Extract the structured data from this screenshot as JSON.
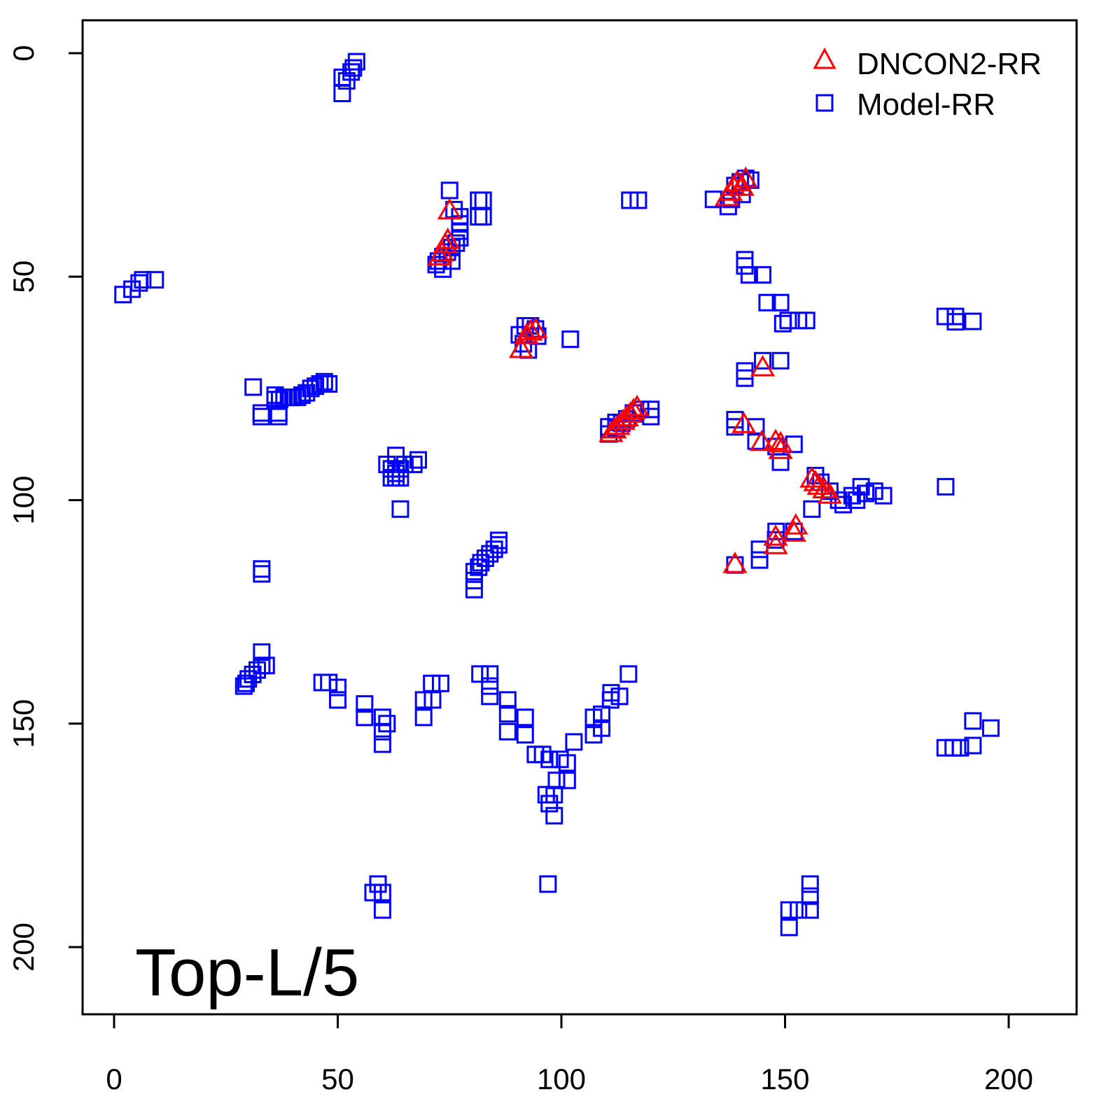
{
  "chart_data": {
    "type": "scatter",
    "title": "",
    "annotation": "Top-L/5",
    "xlabel": "",
    "ylabel": "",
    "xlim": [
      -7,
      215
    ],
    "ylim": [
      215,
      -7
    ],
    "y_inverted": true,
    "x_ticks": [
      "0",
      "50",
      "100",
      "150",
      "200"
    ],
    "y_ticks": [
      "0",
      "50",
      "100",
      "150",
      "200"
    ],
    "grid": false,
    "legend": {
      "placement": "top-right",
      "entries": [
        {
          "label": "DNCON2-RR",
          "marker": "triangle",
          "color": "#ff0000"
        },
        {
          "label": "Model-RR",
          "marker": "square",
          "color": "#0000ff"
        }
      ]
    },
    "series": [
      {
        "name": "Model-RR",
        "marker": "square",
        "color": "#0000ff",
        "points": [
          [
            51,
            9
          ],
          [
            51,
            5.4
          ],
          [
            52,
            6.2
          ],
          [
            53,
            4.2
          ],
          [
            53.5,
            3.3
          ],
          [
            54.2,
            1.9
          ],
          [
            2,
            54
          ],
          [
            4,
            52.8
          ],
          [
            5.6,
            51.4
          ],
          [
            6.4,
            50.7
          ],
          [
            9.2,
            50.7
          ],
          [
            75,
            30.7
          ],
          [
            81.5,
            32.9
          ],
          [
            81.5,
            36.6
          ],
          [
            82.5,
            32.9
          ],
          [
            82.5,
            36.6
          ],
          [
            77.3,
            36.6
          ],
          [
            77.3,
            38.2
          ],
          [
            77.3,
            39.8
          ],
          [
            77.3,
            41.3
          ],
          [
            76.5,
            42.5
          ],
          [
            75.5,
            43.5
          ],
          [
            74.5,
            44.5
          ],
          [
            73.5,
            45.5
          ],
          [
            72.5,
            46.5
          ],
          [
            72,
            47.3
          ],
          [
            73.5,
            48.3
          ],
          [
            75.5,
            46.5
          ],
          [
            76,
            35
          ],
          [
            90.6,
            63
          ],
          [
            91.9,
            61
          ],
          [
            93.1,
            61
          ],
          [
            94.2,
            61.7
          ],
          [
            94.7,
            63.3
          ],
          [
            92.6,
            66.4
          ],
          [
            91.5,
            65
          ],
          [
            102,
            64
          ],
          [
            31.1,
            74.7
          ],
          [
            36,
            76.5
          ],
          [
            37,
            77.5
          ],
          [
            38,
            77
          ],
          [
            39,
            77
          ],
          [
            40,
            77
          ],
          [
            41,
            77
          ],
          [
            42,
            76.5
          ],
          [
            43,
            76
          ],
          [
            44,
            75
          ],
          [
            45,
            74.5
          ],
          [
            46,
            74
          ],
          [
            47,
            73.5
          ],
          [
            48,
            74
          ],
          [
            32.9,
            80.5
          ],
          [
            32.9,
            81.3
          ],
          [
            36.8,
            80.5
          ],
          [
            36.8,
            81.3
          ],
          [
            36,
            77.5
          ],
          [
            61,
            92
          ],
          [
            62,
            93
          ],
          [
            63,
            94
          ],
          [
            64,
            93
          ],
          [
            65,
            92
          ],
          [
            67,
            92
          ],
          [
            68,
            91
          ],
          [
            62,
            95
          ],
          [
            63,
            95
          ],
          [
            64,
            95
          ],
          [
            63,
            90
          ],
          [
            64,
            102
          ],
          [
            80.5,
            120
          ],
          [
            80.5,
            118
          ],
          [
            80.5,
            116
          ],
          [
            81.5,
            115
          ],
          [
            82,
            114
          ],
          [
            83,
            113
          ],
          [
            84,
            112
          ],
          [
            85,
            111
          ],
          [
            86,
            110
          ],
          [
            86,
            109
          ],
          [
            33,
            115.4
          ],
          [
            33,
            116.5
          ],
          [
            29,
            141.6
          ],
          [
            29.5,
            141
          ],
          [
            30,
            140
          ],
          [
            31,
            139
          ],
          [
            32,
            138
          ],
          [
            33,
            137
          ],
          [
            34,
            137
          ],
          [
            33,
            134
          ],
          [
            46.5,
            140.8
          ],
          [
            48,
            140.8
          ],
          [
            50,
            141.9
          ],
          [
            50,
            144.7
          ],
          [
            56,
            145.6
          ],
          [
            56,
            148.6
          ],
          [
            60,
            148.6
          ],
          [
            60,
            151.8
          ],
          [
            60,
            154.6
          ],
          [
            61,
            150
          ],
          [
            69.2,
            144.7
          ],
          [
            71.2,
            144.7
          ],
          [
            69.2,
            148.6
          ],
          [
            71,
            141
          ],
          [
            73,
            141
          ],
          [
            81.8,
            138.9
          ],
          [
            84,
            138.9
          ],
          [
            84,
            141.6
          ],
          [
            84,
            143.9
          ],
          [
            88,
            144.7
          ],
          [
            88,
            147.8
          ],
          [
            88,
            151.8
          ],
          [
            91.9,
            148.6
          ],
          [
            91.9,
            152.5
          ],
          [
            94.2,
            156.9
          ],
          [
            95.8,
            156.9
          ],
          [
            97.3,
            158
          ],
          [
            99.7,
            158
          ],
          [
            101.3,
            158.8
          ],
          [
            102.8,
            154.1
          ],
          [
            101.3,
            162.7
          ],
          [
            98.9,
            162.7
          ],
          [
            98.4,
            165.9
          ],
          [
            96.6,
            165.9
          ],
          [
            97.3,
            167.9
          ],
          [
            98.4,
            170.6
          ],
          [
            107.2,
            152.5
          ],
          [
            109,
            151
          ],
          [
            109,
            147.9
          ],
          [
            111,
            144.7
          ],
          [
            113,
            143.9
          ],
          [
            115,
            138.9
          ],
          [
            107.2,
            148.6
          ],
          [
            111.1,
            143.1
          ],
          [
            59,
            185.9
          ],
          [
            60,
            187.8
          ],
          [
            60,
            191.7
          ],
          [
            57.9,
            187.8
          ],
          [
            97,
            185.9
          ],
          [
            155.6,
            185.9
          ],
          [
            155.6,
            188.6
          ],
          [
            155.6,
            191.7
          ],
          [
            150.9,
            191.7
          ],
          [
            150.9,
            195.6
          ],
          [
            153,
            191.7
          ],
          [
            185.8,
            155.4
          ],
          [
            187.6,
            155.4
          ],
          [
            189.2,
            155.4
          ],
          [
            192,
            154.9
          ],
          [
            192,
            149.4
          ],
          [
            196,
            151
          ],
          [
            185.9,
            97
          ],
          [
            185.8,
            58.9
          ],
          [
            188.1,
            58.9
          ],
          [
            188.1,
            60.1
          ],
          [
            192,
            60
          ],
          [
            141,
            46.2
          ],
          [
            141,
            47.6
          ],
          [
            142,
            49.6
          ],
          [
            145,
            49.6
          ],
          [
            146,
            55.8
          ],
          [
            149,
            55.8
          ],
          [
            149.5,
            60.5
          ],
          [
            150.7,
            59.8
          ],
          [
            153,
            59.8
          ],
          [
            154.8,
            59.8
          ],
          [
            141,
            71.1
          ],
          [
            141,
            72.7
          ],
          [
            145,
            68.8
          ],
          [
            149,
            68.8
          ],
          [
            138.8,
            82
          ],
          [
            138.8,
            83.6
          ],
          [
            143.5,
            83.6
          ],
          [
            143.5,
            86.8
          ],
          [
            152,
            87.5
          ],
          [
            149,
            91.5
          ],
          [
            148,
            88
          ],
          [
            156.8,
            94.5
          ],
          [
            158,
            96
          ],
          [
            160,
            98
          ],
          [
            162,
            100
          ],
          [
            165,
            99
          ],
          [
            167,
            97
          ],
          [
            168,
            98.5
          ],
          [
            170,
            98
          ],
          [
            172,
            99
          ],
          [
            156,
            102
          ],
          [
            163,
            101
          ],
          [
            166,
            100
          ],
          [
            144.3,
            111
          ],
          [
            144.3,
            113.4
          ],
          [
            148,
            107
          ],
          [
            152,
            107
          ],
          [
            147.9,
            108.9
          ],
          [
            138.8,
            114.5
          ],
          [
            134,
            32.7
          ],
          [
            137.3,
            34.3
          ],
          [
            138.8,
            29.6
          ],
          [
            140,
            28.8
          ],
          [
            141.2,
            28
          ],
          [
            142.3,
            28.4
          ],
          [
            140.4,
            31.6
          ],
          [
            138,
            32.7
          ],
          [
            115.3,
            32.9
          ],
          [
            117.2,
            32.9
          ],
          [
            110.6,
            85.2
          ],
          [
            112.2,
            84
          ],
          [
            113.5,
            82.8
          ],
          [
            114.6,
            81.8
          ],
          [
            116.1,
            80.5
          ],
          [
            117.7,
            79.7
          ],
          [
            120,
            79.7
          ],
          [
            120,
            81.3
          ],
          [
            110.6,
            83.6
          ],
          [
            112.2,
            82.6
          ]
        ]
      },
      {
        "name": "DNCON2-RR",
        "marker": "triangle",
        "color": "#ff0000",
        "points": [
          [
            75,
            35.4
          ],
          [
            74,
            43
          ],
          [
            74.6,
            42
          ],
          [
            73.3,
            44.8
          ],
          [
            72.8,
            45.7
          ],
          [
            91,
            66.4
          ],
          [
            92.2,
            63.3
          ],
          [
            93.1,
            62.5
          ],
          [
            94.2,
            62
          ],
          [
            137,
            32.4
          ],
          [
            137.8,
            31.2
          ],
          [
            138.5,
            30.1
          ],
          [
            139.3,
            29.1
          ],
          [
            140.4,
            30.1
          ],
          [
            141.2,
            28.3
          ],
          [
            145,
            70.5
          ],
          [
            111.1,
            85.2
          ],
          [
            111.9,
            84.4
          ],
          [
            112.7,
            83.6
          ],
          [
            113.8,
            82.5
          ],
          [
            114.6,
            81.7
          ],
          [
            115.4,
            80.9
          ],
          [
            116.1,
            80.1
          ],
          [
            116.9,
            79.4
          ],
          [
            140.8,
            83.2
          ],
          [
            144.8,
            87.2
          ],
          [
            147.9,
            87
          ],
          [
            149,
            87.5
          ],
          [
            149,
            89
          ],
          [
            156,
            95.4
          ],
          [
            156.8,
            96.2
          ],
          [
            157.6,
            97
          ],
          [
            158.8,
            97.8
          ],
          [
            160,
            99
          ],
          [
            152.4,
            105.9
          ],
          [
            152,
            107.5
          ],
          [
            147.9,
            108.4
          ],
          [
            147.9,
            110.3
          ],
          [
            138.8,
            114.5
          ]
        ]
      }
    ]
  }
}
